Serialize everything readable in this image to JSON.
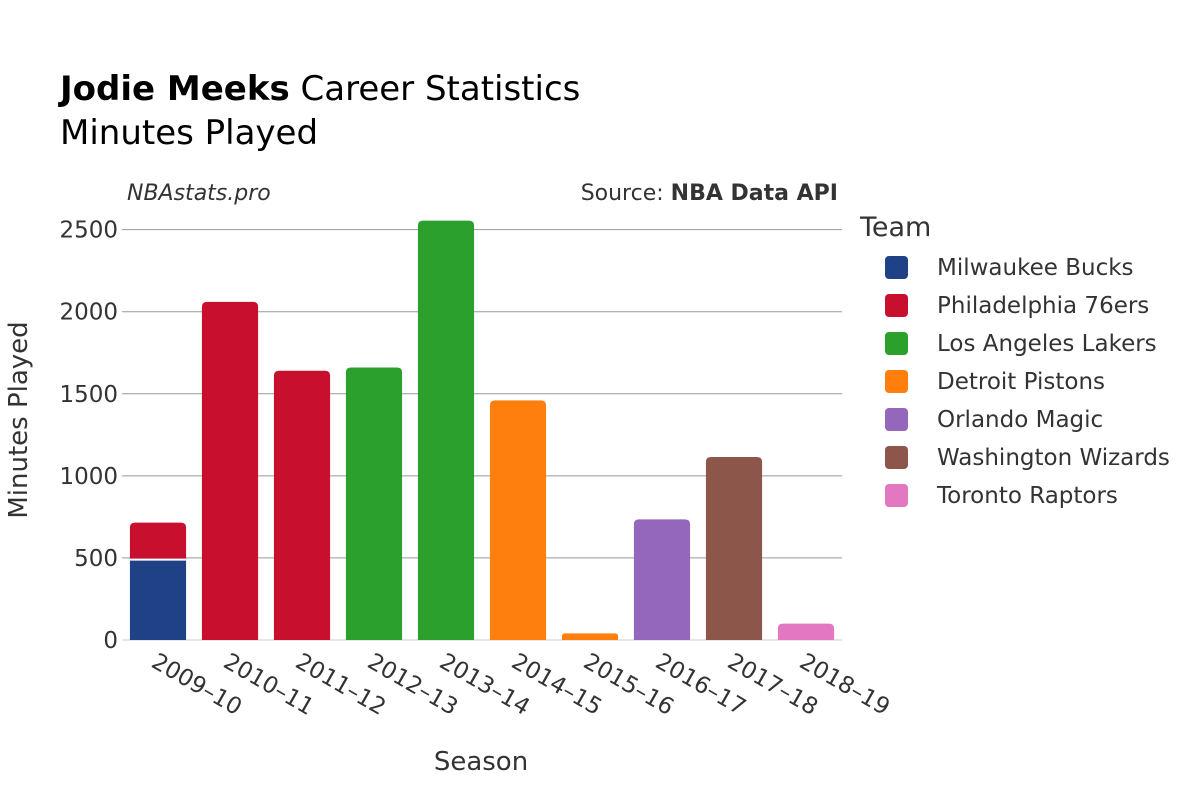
{
  "title": {
    "bold_part": "Jodie Meeks",
    "rest": " Career Statistics",
    "subtitle": "Minutes Played"
  },
  "credits": {
    "left": "NBAstats.pro",
    "source_prefix": "Source: ",
    "source_name": "NBA Data API"
  },
  "chart_data": {
    "type": "bar",
    "stacked": true,
    "xlabel": "Season",
    "ylabel": "Minutes Played",
    "ylim": [
      0,
      2650
    ],
    "yticks": [
      0,
      500,
      1000,
      1500,
      2000,
      2500
    ],
    "grid": true,
    "legend_title": "Team",
    "legend_position": "right",
    "categories": [
      "2009–10",
      "2010–11",
      "2011–12",
      "2012–13",
      "2013–14",
      "2014–15",
      "2015–16",
      "2016–17",
      "2017–18",
      "2018–19"
    ],
    "series": [
      {
        "name": "Milwaukee Bucks",
        "color": "#1f4287",
        "values": [
          490,
          0,
          0,
          0,
          0,
          0,
          0,
          0,
          0,
          0
        ]
      },
      {
        "name": "Philadelphia 76ers",
        "color": "#c8102e",
        "values": [
          225,
          2060,
          1640,
          0,
          0,
          0,
          0,
          0,
          0,
          0
        ]
      },
      {
        "name": "Los Angeles Lakers",
        "color": "#2ca02c",
        "values": [
          0,
          0,
          0,
          1660,
          2555,
          0,
          0,
          0,
          0,
          0
        ]
      },
      {
        "name": "Detroit Pistons",
        "color": "#ff7f0e",
        "values": [
          0,
          0,
          0,
          0,
          0,
          1460,
          40,
          0,
          0,
          0
        ]
      },
      {
        "name": "Orlando Magic",
        "color": "#9467bd",
        "values": [
          0,
          0,
          0,
          0,
          0,
          0,
          0,
          735,
          0,
          0
        ]
      },
      {
        "name": "Washington Wizards",
        "color": "#8c564b",
        "values": [
          0,
          0,
          0,
          0,
          0,
          0,
          0,
          0,
          1115,
          0
        ]
      },
      {
        "name": "Toronto Raptors",
        "color": "#e377c2",
        "values": [
          0,
          0,
          0,
          0,
          0,
          0,
          0,
          0,
          0,
          100
        ]
      }
    ]
  }
}
